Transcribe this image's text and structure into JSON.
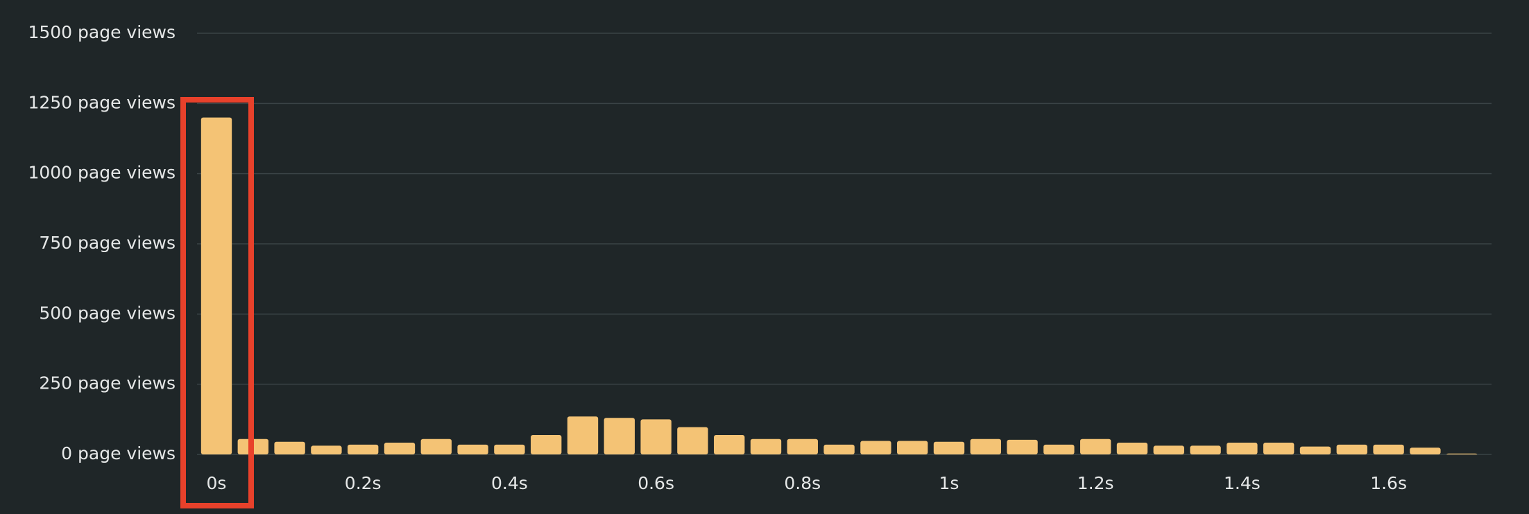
{
  "chart_data": {
    "type": "bar",
    "categories": [
      "0s",
      null,
      null,
      null,
      "0.2s",
      null,
      null,
      null,
      "0.4s",
      null,
      null,
      null,
      "0.6s",
      null,
      null,
      null,
      "0.8s",
      null,
      null,
      null,
      "1s",
      null,
      null,
      null,
      "1.2s",
      null,
      null,
      null,
      "1.4s",
      null,
      null,
      null,
      "1.6s",
      null,
      null
    ],
    "values": [
      1200,
      55,
      45,
      31,
      35,
      42,
      55,
      35,
      35,
      69,
      135,
      130,
      125,
      97,
      69,
      55,
      55,
      35,
      48,
      48,
      45,
      55,
      52,
      35,
      55,
      42,
      31,
      31,
      42,
      42,
      28,
      35,
      35,
      24,
      3
    ],
    "color": "#f4c375",
    "ylim": [
      0,
      1500
    ],
    "yticks": [
      {
        "value": 0,
        "label": "0 page views"
      },
      {
        "value": 250,
        "label": "250 page views"
      },
      {
        "value": 500,
        "label": "500 page views"
      },
      {
        "value": 750,
        "label": "750 page views"
      },
      {
        "value": 1000,
        "label": "1000 page views"
      },
      {
        "value": 1250,
        "label": "1250 page views"
      },
      {
        "value": 1500,
        "label": "1500 page views"
      }
    ],
    "grid": true
  }
}
